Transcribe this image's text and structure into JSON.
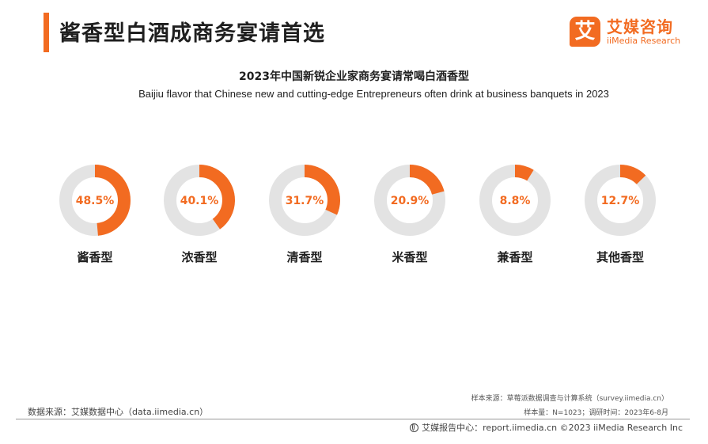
{
  "header": {
    "title": "酱香型白酒成商务宴请首选"
  },
  "brand": {
    "mark": "艾",
    "name_cn": "艾媒咨询",
    "name_en": "iiMedia Research"
  },
  "colors": {
    "accent": "#f26b21",
    "ring_track": "#e3e3e3",
    "value_text": "#f26b21"
  },
  "chart_data": {
    "type": "pie",
    "variant": "donut-multiples",
    "title": "2023年中国新锐企业家商务宴请常喝白酒香型",
    "subtitle": "Baijiu flavor that Chinese new and cutting-edge Entrepreneurs often drink at business banquets in 2023",
    "unit": "%",
    "categories": [
      "酱香型",
      "浓香型",
      "清香型",
      "米香型",
      "兼香型",
      "其他香型"
    ],
    "values": [
      48.5,
      40.1,
      31.7,
      20.9,
      8.8,
      12.7
    ],
    "value_labels": [
      "48.5%",
      "40.1%",
      "31.7%",
      "20.9%",
      "8.8%",
      "12.7%"
    ]
  },
  "footer": {
    "data_source": "数据来源：艾媒数据中心（data.iimedia.cn）",
    "sample_source": "样本来源：草莓派数据调查与计算系统（survey.iimedia.cn）",
    "sample_size": "样本量：N=1023；调研时间：2023年6-8月",
    "report": "艾媒报告中心：report.iimedia.cn  ©2023  iiMedia Research  Inc"
  }
}
